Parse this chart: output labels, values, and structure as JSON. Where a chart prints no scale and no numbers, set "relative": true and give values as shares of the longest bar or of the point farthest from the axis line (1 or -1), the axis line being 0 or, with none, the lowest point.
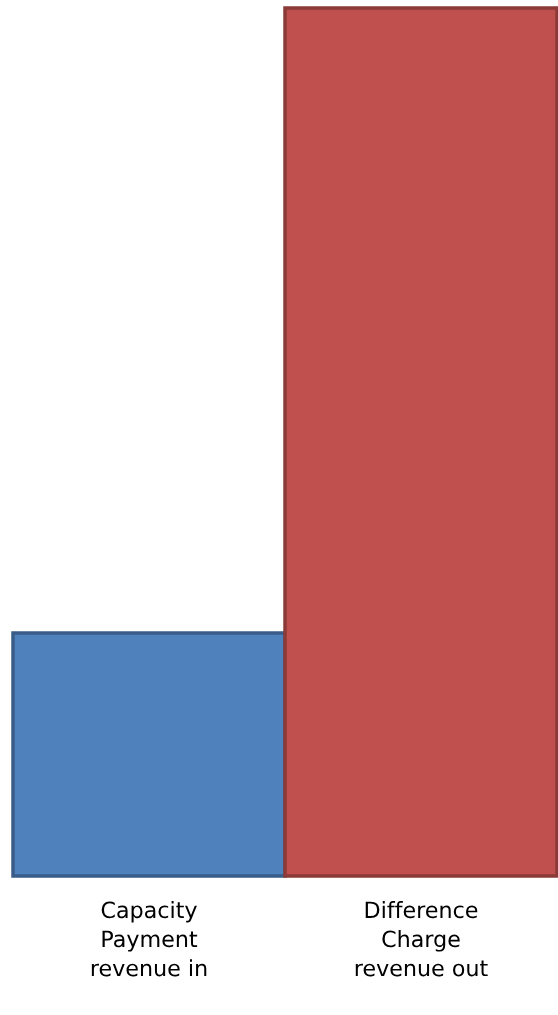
{
  "chart_data": {
    "type": "bar",
    "relative": true,
    "categories": [
      "Capacity\nPayment\nrevenue in",
      "Difference\nCharge\nrevenue out"
    ],
    "values": [
      0.28,
      1
    ],
    "colors": [
      "#4f81bd",
      "#c0504d"
    ]
  }
}
